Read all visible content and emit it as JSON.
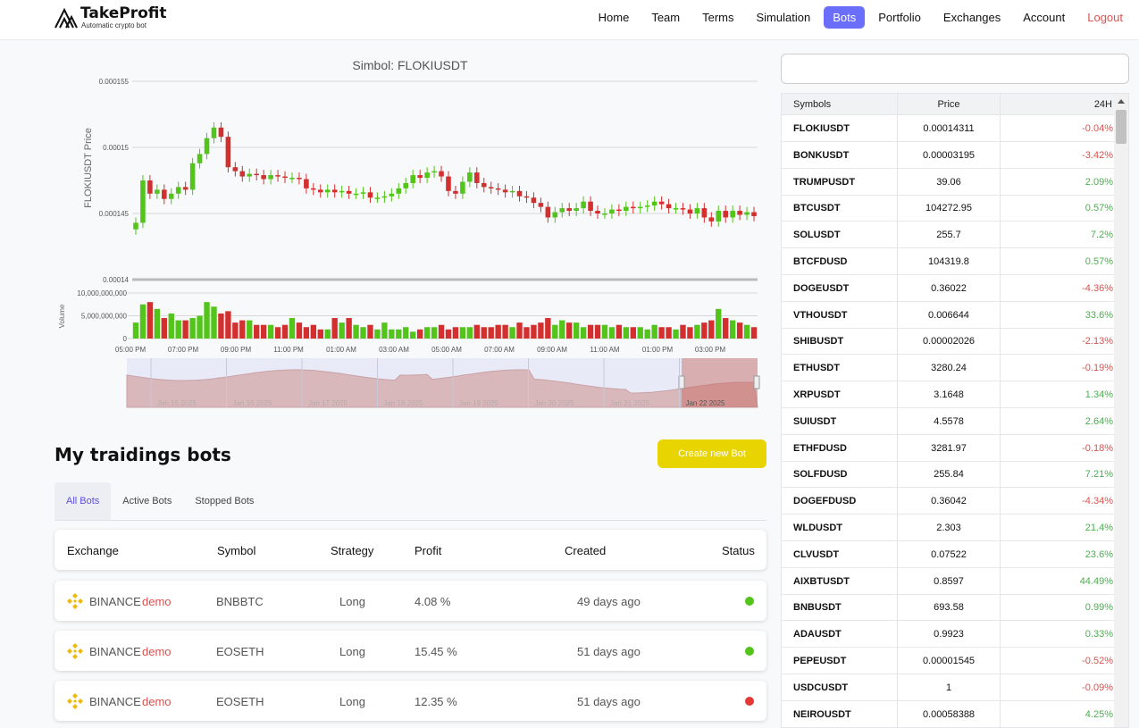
{
  "brand": {
    "title": "TakeProfit",
    "subtitle": "Automatic crypto bot"
  },
  "nav": {
    "items": [
      "Home",
      "Team",
      "Terms",
      "Simulation",
      "Bots",
      "Portfolio",
      "Exchanges",
      "Account"
    ],
    "active": "Bots",
    "logout": "Logout"
  },
  "chart_data": {
    "type": "candlestick",
    "title": "Simbol: FLOKIUSDT",
    "ylabel": "FLOKIUSDT Price",
    "yticks": [
      "0.000155",
      "0.00015",
      "0.000145",
      "0.00014"
    ],
    "ylim": [
      0.00014,
      0.000155
    ],
    "volume_label": "Volume",
    "volume_ticks": [
      "10,000,000,000",
      "5,000,000,000",
      "0"
    ],
    "xticks": [
      "05:00 PM",
      "07:00 PM",
      "09:00 PM",
      "11:00 PM",
      "01:00 AM",
      "03:00 AM",
      "05:00 AM",
      "07:00 AM",
      "09:00 AM",
      "11:00 AM",
      "01:00 PM",
      "03:00 PM"
    ],
    "navigator_dates": [
      "Jan 15 2025",
      "Jan 16 2025",
      "Jan 17 2025",
      "Jan 18 2025",
      "Jan 19 2025",
      "Jan 20 2025",
      "Jan 21 2025",
      "Jan 22 2025"
    ],
    "candles_close": [
      0.0001443,
      0.0001475,
      0.0001465,
      0.0001468,
      0.0001461,
      0.0001465,
      0.000147,
      0.0001468,
      0.0001488,
      0.0001495,
      0.0001507,
      0.0001515,
      0.0001508,
      0.0001485,
      0.0001482,
      0.0001478,
      0.000148,
      0.0001479,
      0.0001476,
      0.0001479,
      0.0001478,
      0.0001477,
      0.0001477,
      0.0001476,
      0.0001469,
      0.0001468,
      0.0001466,
      0.0001468,
      0.0001466,
      0.0001467,
      0.0001465,
      0.0001465,
      0.0001466,
      0.0001462,
      0.0001462,
      0.0001463,
      0.0001465,
      0.0001469,
      0.0001473,
      0.0001479,
      0.0001477,
      0.0001481,
      0.0001482,
      0.0001478,
      0.0001467,
      0.0001465,
      0.0001474,
      0.0001481,
      0.0001473,
      0.000147,
      0.0001469,
      0.0001468,
      0.0001466,
      0.0001467,
      0.0001463,
      0.0001462,
      0.0001458,
      0.0001455,
      0.0001447,
      0.0001451,
      0.0001454,
      0.0001452,
      0.0001454,
      0.0001459,
      0.0001452,
      0.000145,
      0.000145,
      0.0001453,
      0.0001452,
      0.0001455,
      0.0001454,
      0.0001455,
      0.0001456,
      0.0001459,
      0.0001457,
      0.0001454,
      0.0001454,
      0.0001453,
      0.000145,
      0.0001454,
      0.0001447,
      0.0001444,
      0.0001452,
      0.0001447,
      0.0001452,
      0.0001449,
      0.0001451,
      0.0001448
    ],
    "volume": [
      3.5,
      7.5,
      8.0,
      6.5,
      4.5,
      5.5,
      4.0,
      4.0,
      4.5,
      5.0,
      8.0,
      7.0,
      5.5,
      6.0,
      3.5,
      4.0,
      4.0,
      3.0,
      3.0,
      3.0,
      2.5,
      3.0,
      4.5,
      3.5,
      2.5,
      3.0,
      2.0,
      2.0,
      4.5,
      3.5,
      4.5,
      3.0,
      2.5,
      3.0,
      2.0,
      3.5,
      2.0,
      2.0,
      2.5,
      1.5,
      2.0,
      2.5,
      2.5,
      3.0,
      2.0,
      2.5,
      2.5,
      2.5,
      3.0,
      2.5,
      2.5,
      3.0,
      3.0,
      2.5,
      3.5,
      2.5,
      3.0,
      3.5,
      4.5,
      3.0,
      4.0,
      3.5,
      3.5,
      2.5,
      3.0,
      3.0,
      3.0,
      2.5,
      3.0,
      2.5,
      2.5,
      2.5,
      2.0,
      3.0,
      2.5,
      2.5,
      2.0,
      3.0,
      2.5,
      3.0,
      3.5,
      4.0,
      6.5,
      4.5,
      4.0,
      3.5,
      3.0,
      2.5
    ]
  },
  "bots": {
    "title": "My traidings bots",
    "create_label": "Create new Bot",
    "tabs": [
      "All Bots",
      "Active Bots",
      "Stopped Bots"
    ],
    "active_tab": "All Bots",
    "headers": {
      "exchange": "Exchange",
      "symbol": "Symbol",
      "strategy": "Strategy",
      "profit": "Profit",
      "created": "Created",
      "status": "Status"
    },
    "rows": [
      {
        "exchange": "BINANCE",
        "tag": "demo",
        "symbol": "BNBBTC",
        "strategy": "Long",
        "profit": "4.08 %",
        "created": "49 days ago",
        "status": "active",
        "status_color": "#52c41a"
      },
      {
        "exchange": "BINANCE",
        "tag": "demo",
        "symbol": "EOSETH",
        "strategy": "Long",
        "profit": "15.45 %",
        "created": "51 days ago",
        "status": "active",
        "status_color": "#52c41a"
      },
      {
        "exchange": "BINANCE",
        "tag": "demo",
        "symbol": "EOSETH",
        "strategy": "Long",
        "profit": "12.35 %",
        "created": "51 days ago",
        "status": "stopped",
        "status_color": "#e53935"
      }
    ]
  },
  "market": {
    "search_placeholder": "",
    "headers": {
      "symbol": "Symbols",
      "price": "Price",
      "change": "24H"
    },
    "rows": [
      {
        "symbol": "FLOKIUSDT",
        "price": "0.00014311",
        "change": "-0.04%"
      },
      {
        "symbol": "BONKUSDT",
        "price": "0.00003195",
        "change": "-3.42%"
      },
      {
        "symbol": "TRUMPUSDT",
        "price": "39.06",
        "change": "2.09%"
      },
      {
        "symbol": "BTCUSDT",
        "price": "104272.95",
        "change": "0.57%"
      },
      {
        "symbol": "SOLUSDT",
        "price": "255.7",
        "change": "7.2%"
      },
      {
        "symbol": "BTCFDUSD",
        "price": "104319.8",
        "change": "0.57%"
      },
      {
        "symbol": "DOGEUSDT",
        "price": "0.36022",
        "change": "-4.36%"
      },
      {
        "symbol": "VTHOUSDT",
        "price": "0.006644",
        "change": "33.6%"
      },
      {
        "symbol": "SHIBUSDT",
        "price": "0.00002026",
        "change": "-2.13%"
      },
      {
        "symbol": "ETHUSDT",
        "price": "3280.24",
        "change": "-0.19%"
      },
      {
        "symbol": "XRPUSDT",
        "price": "3.1648",
        "change": "1.34%"
      },
      {
        "symbol": "SUIUSDT",
        "price": "4.5578",
        "change": "2.64%"
      },
      {
        "symbol": "ETHFDUSD",
        "price": "3281.97",
        "change": "-0.18%"
      },
      {
        "symbol": "SOLFDUSD",
        "price": "255.84",
        "change": "7.21%"
      },
      {
        "symbol": "DOGEFDUSD",
        "price": "0.36042",
        "change": "-4.34%"
      },
      {
        "symbol": "WLDUSDT",
        "price": "2.303",
        "change": "21.4%"
      },
      {
        "symbol": "CLVUSDT",
        "price": "0.07522",
        "change": "23.6%"
      },
      {
        "symbol": "AIXBTUSDT",
        "price": "0.8597",
        "change": "44.49%"
      },
      {
        "symbol": "BNBUSDT",
        "price": "693.58",
        "change": "0.99%"
      },
      {
        "symbol": "ADAUSDT",
        "price": "0.9923",
        "change": "0.33%"
      },
      {
        "symbol": "PEPEUSDT",
        "price": "0.00001545",
        "change": "-0.52%"
      },
      {
        "symbol": "USDCUSDT",
        "price": "1",
        "change": "-0.09%"
      },
      {
        "symbol": "NEIROUSDT",
        "price": "0.00058388",
        "change": "4.25%"
      }
    ]
  },
  "colors": {
    "up": "#52c41a",
    "down": "#d32f2f",
    "accent": "#6b6ef8",
    "create": "#e8d400",
    "logout": "#d9534f",
    "neg": "#d9534f",
    "pos": "#4caf50"
  }
}
